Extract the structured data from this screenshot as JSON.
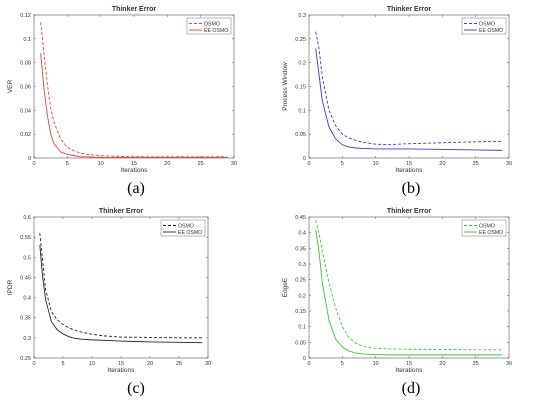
{
  "chart_data": [
    {
      "type": "line",
      "caption": "(a)",
      "title": "Thinker Error",
      "xlabel": "Iterations",
      "ylabel": "VER",
      "xlim": [
        0,
        30
      ],
      "ylim": [
        0,
        0.12
      ],
      "xticks": [
        "0",
        "5",
        "10",
        "15",
        "20",
        "25",
        "30"
      ],
      "yticks": [
        "0",
        "0.02",
        "0.04",
        "0.06",
        "0.08",
        "0.1",
        "0.12"
      ],
      "legend_position": "top-right",
      "series": [
        {
          "name": "OSMO",
          "color": "#e8413a",
          "style": "dashed",
          "x": [
            1,
            1.5,
            2,
            2.5,
            3,
            4,
            5,
            6,
            7,
            8,
            10,
            12,
            15,
            20,
            25,
            29
          ],
          "y": [
            0.114,
            0.088,
            0.062,
            0.042,
            0.03,
            0.016,
            0.009,
            0.006,
            0.004,
            0.003,
            0.002,
            0.0015,
            0.001,
            0.001,
            0.001,
            0.001
          ]
        },
        {
          "name": "EE OSMO",
          "color": "#e8413a",
          "style": "solid",
          "x": [
            1,
            1.5,
            2,
            2.5,
            3,
            4,
            5,
            6,
            7,
            8,
            10,
            12,
            15,
            20,
            25,
            29
          ],
          "y": [
            0.088,
            0.058,
            0.036,
            0.02,
            0.012,
            0.005,
            0.003,
            0.002,
            0.001,
            0.001,
            0.0005,
            0.0005,
            0.0005,
            0.0005,
            0.0005,
            0.0005
          ]
        }
      ]
    },
    {
      "type": "line",
      "caption": "(b)",
      "title": "Thinker Error",
      "xlabel": "Iterations",
      "ylabel": "Process Window",
      "xlim": [
        0,
        30
      ],
      "ylim": [
        0,
        0.3
      ],
      "xticks": [
        "0",
        "5",
        "10",
        "15",
        "20",
        "25",
        "30"
      ],
      "yticks": [
        "0",
        "0.05",
        "0.1",
        "0.15",
        "0.2",
        "0.25",
        "0.3"
      ],
      "legend_position": "top-right",
      "series": [
        {
          "name": "OSMO",
          "color": "#3a3ad6",
          "style": "dashed",
          "x": [
            1,
            1.5,
            2,
            3,
            4,
            5,
            6,
            7,
            8,
            10,
            12,
            15,
            20,
            25,
            29
          ],
          "y": [
            0.265,
            0.23,
            0.17,
            0.1,
            0.068,
            0.05,
            0.042,
            0.037,
            0.033,
            0.029,
            0.028,
            0.03,
            0.032,
            0.034,
            0.035
          ]
        },
        {
          "name": "EE OSMO",
          "color": "#3a3ad6",
          "style": "solid",
          "x": [
            1,
            1.5,
            2,
            3,
            4,
            5,
            6,
            7,
            8,
            10,
            12,
            15,
            20,
            25,
            29
          ],
          "y": [
            0.23,
            0.175,
            0.12,
            0.065,
            0.04,
            0.028,
            0.023,
            0.021,
            0.02,
            0.019,
            0.019,
            0.019,
            0.018,
            0.017,
            0.016
          ]
        }
      ]
    },
    {
      "type": "line",
      "caption": "(c)",
      "title": "Thinker Error",
      "xlabel": "Iterations",
      "ylabel": "IPDR",
      "xlim": [
        0,
        30
      ],
      "ylim": [
        0.25,
        0.6
      ],
      "xticks": [
        "0",
        "5",
        "10",
        "15",
        "20",
        "25",
        "30"
      ],
      "yticks": [
        "0.25",
        "0.3",
        "0.35",
        "0.4",
        "0.45",
        "0.5",
        "0.55",
        "0.6"
      ],
      "legend_position": "top-right",
      "series": [
        {
          "name": "OSMO",
          "color": "#222222",
          "style": "dashed",
          "x": [
            1,
            1.5,
            2,
            3,
            4,
            5,
            6,
            7,
            8,
            10,
            12,
            15,
            20,
            25,
            29
          ],
          "y": [
            0.56,
            0.49,
            0.42,
            0.365,
            0.345,
            0.333,
            0.325,
            0.319,
            0.315,
            0.309,
            0.305,
            0.302,
            0.301,
            0.3,
            0.3
          ]
        },
        {
          "name": "EE OSMO",
          "color": "#222222",
          "style": "solid",
          "x": [
            1,
            1.5,
            2,
            3,
            4,
            5,
            6,
            7,
            8,
            10,
            12,
            15,
            20,
            25,
            29
          ],
          "y": [
            0.53,
            0.45,
            0.395,
            0.34,
            0.32,
            0.31,
            0.303,
            0.299,
            0.297,
            0.295,
            0.294,
            0.292,
            0.29,
            0.289,
            0.288
          ]
        }
      ]
    },
    {
      "type": "line",
      "caption": "(d)",
      "title": "Thinker Error",
      "xlabel": "Iterations",
      "ylabel": "EdgeE",
      "xlim": [
        0,
        30
      ],
      "ylim": [
        0,
        0.45
      ],
      "xticks": [
        "0",
        "5",
        "10",
        "15",
        "20",
        "25",
        "30"
      ],
      "yticks": [
        "0",
        "0.05",
        "0.1",
        "0.15",
        "0.2",
        "0.25",
        "0.3",
        "0.35",
        "0.4",
        "0.45"
      ],
      "legend_position": "top-right",
      "series": [
        {
          "name": "OSMO",
          "color": "#36c936",
          "style": "dashed",
          "x": [
            1,
            1.5,
            2,
            3,
            4,
            5,
            6,
            7,
            8,
            10,
            12,
            15,
            20,
            25,
            29
          ],
          "y": [
            0.44,
            0.4,
            0.34,
            0.24,
            0.16,
            0.1,
            0.065,
            0.048,
            0.038,
            0.031,
            0.029,
            0.028,
            0.027,
            0.026,
            0.026
          ]
        },
        {
          "name": "EE OSMO",
          "color": "#36c936",
          "style": "solid",
          "x": [
            1,
            1.5,
            2,
            3,
            4,
            5,
            6,
            7,
            8,
            10,
            12,
            15,
            20,
            25,
            29
          ],
          "y": [
            0.41,
            0.34,
            0.24,
            0.12,
            0.06,
            0.035,
            0.022,
            0.016,
            0.013,
            0.011,
            0.01,
            0.01,
            0.01,
            0.01,
            0.01
          ]
        }
      ]
    }
  ]
}
